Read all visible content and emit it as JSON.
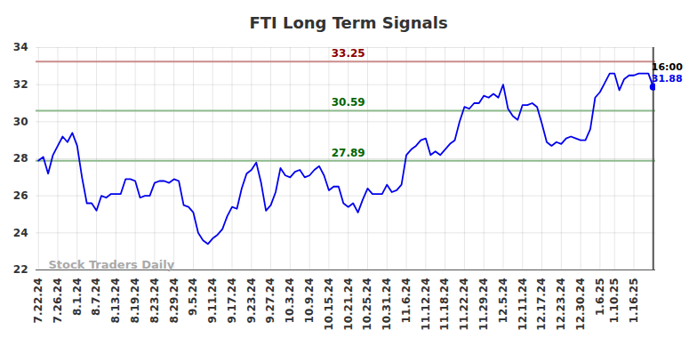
{
  "chart_data": {
    "type": "line",
    "title": "FTI Long Term Signals",
    "watermark": "Stock Traders Daily",
    "categories": [
      "7.22.24",
      null,
      null,
      null,
      "7.26.24",
      null,
      null,
      null,
      "8.1.24",
      null,
      null,
      null,
      "8.7.24",
      null,
      null,
      null,
      "8.13.24",
      null,
      null,
      null,
      "8.19.24",
      null,
      null,
      null,
      "8.23.24",
      null,
      null,
      null,
      "8.29.24",
      null,
      null,
      null,
      "9.5.24",
      null,
      null,
      null,
      "9.11.24",
      null,
      null,
      null,
      "9.17.24",
      null,
      null,
      null,
      "9.23.24",
      null,
      null,
      null,
      "9.27.24",
      null,
      null,
      null,
      "10.3.24",
      null,
      null,
      null,
      "10.9.24",
      null,
      null,
      null,
      "10.15.24",
      null,
      null,
      null,
      "10.21.24",
      null,
      null,
      null,
      "10.25.24",
      null,
      null,
      null,
      "10.31.24",
      null,
      null,
      null,
      "11.6.24",
      null,
      null,
      null,
      "11.12.24",
      null,
      null,
      null,
      "11.18.24",
      null,
      null,
      null,
      "11.22.24",
      null,
      null,
      null,
      "11.29.24",
      null,
      null,
      null,
      "12.5.24",
      null,
      null,
      null,
      "12.11.24",
      null,
      null,
      null,
      "12.17.24",
      null,
      null,
      null,
      "12.23.24",
      null,
      null,
      null,
      "12.30.24",
      null,
      null,
      null,
      "1.6.25",
      null,
      null,
      "1.10.25",
      null,
      null,
      null,
      "1.16.25",
      null,
      null,
      null,
      null
    ],
    "series": [
      {
        "name": "FTI",
        "color": "#0000ee",
        "values": [
          27.9,
          28.1,
          27.2,
          28.2,
          28.7,
          29.2,
          28.9,
          29.4,
          28.7,
          27.0,
          25.6,
          25.6,
          25.2,
          26.0,
          25.9,
          26.1,
          26.1,
          26.1,
          26.9,
          26.9,
          26.8,
          25.9,
          26.0,
          26.0,
          26.7,
          26.8,
          26.8,
          26.7,
          26.9,
          26.8,
          25.5,
          25.4,
          25.1,
          24.0,
          23.6,
          23.4,
          23.7,
          23.9,
          24.2,
          24.9,
          25.4,
          25.3,
          26.4,
          27.2,
          27.4,
          27.8,
          26.7,
          25.2,
          25.5,
          26.2,
          27.5,
          27.1,
          27.0,
          27.3,
          27.4,
          27.0,
          27.1,
          27.4,
          27.6,
          27.1,
          26.3,
          26.5,
          26.5,
          25.6,
          25.4,
          25.6,
          25.1,
          25.8,
          26.4,
          26.1,
          26.1,
          26.1,
          26.6,
          26.2,
          26.3,
          26.6,
          28.2,
          28.5,
          28.7,
          29.0,
          29.1,
          28.2,
          28.4,
          28.2,
          28.5,
          28.8,
          29.0,
          30.0,
          30.8,
          30.7,
          31.0,
          31.0,
          31.4,
          31.3,
          31.5,
          31.3,
          32.0,
          30.7,
          30.3,
          30.1,
          30.9,
          30.9,
          31.0,
          30.8,
          29.9,
          28.9,
          28.7,
          28.9,
          28.8,
          29.1,
          29.2,
          29.1,
          29.0,
          29.0,
          29.6,
          31.3,
          31.6,
          32.1,
          32.6,
          32.6,
          31.7,
          32.3,
          32.5,
          32.5,
          32.6,
          32.6,
          32.6,
          31.88
        ]
      }
    ],
    "reference_lines": [
      {
        "value": 33.25,
        "color": "#8b0000"
      },
      {
        "value": 30.59,
        "color": "#006400"
      },
      {
        "value": 27.89,
        "color": "#006400"
      }
    ],
    "last_label": {
      "time": "16:00",
      "value": 31.88
    },
    "ylim": [
      22,
      34
    ],
    "yticks": [
      22,
      24,
      26,
      28,
      30,
      32,
      34
    ],
    "grid": true
  }
}
